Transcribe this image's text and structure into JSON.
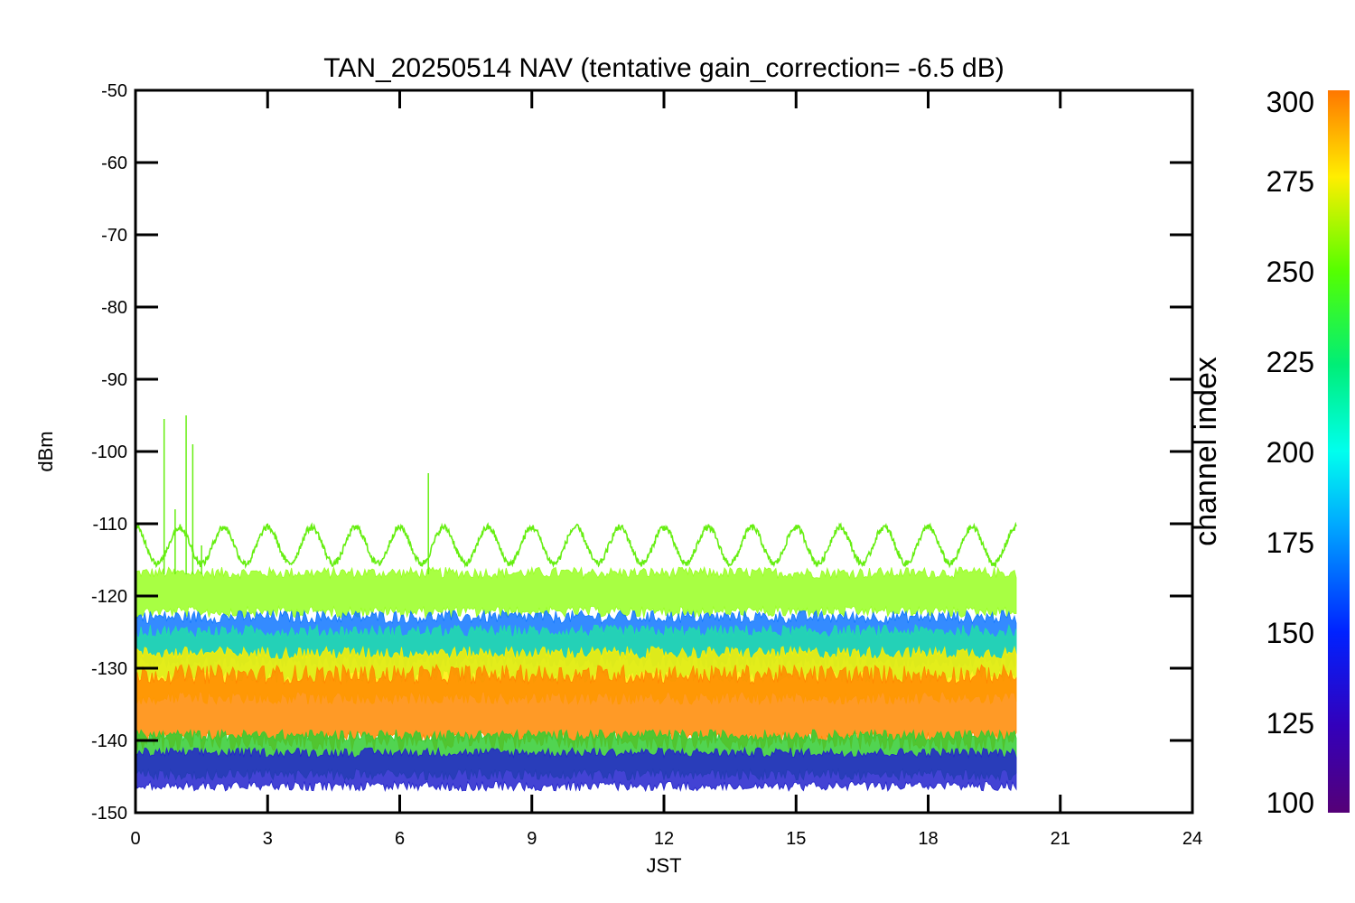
{
  "chart_data": {
    "type": "line",
    "title": "TAN_20250514 NAV (tentative gain_correction= -6.5 dB)",
    "xlabel": "JST",
    "ylabel": "dBm",
    "xlim": [
      0,
      24
    ],
    "ylim": [
      -150,
      -50
    ],
    "xticks": [
      0,
      3,
      6,
      9,
      12,
      15,
      18,
      21,
      24
    ],
    "yticks": [
      -50,
      -60,
      -70,
      -80,
      -90,
      -100,
      -110,
      -120,
      -130,
      -140,
      -150
    ],
    "colorbar": {
      "label": "channel index",
      "range": [
        100,
        300
      ],
      "ticks": [
        300,
        275,
        250,
        225,
        200,
        175,
        150,
        125,
        100
      ],
      "colormap": "rainbow"
    },
    "data_end_x": 20,
    "series": [
      {
        "channel": 240,
        "pattern": "sinusoid",
        "center": -113,
        "amplitude": 2.5,
        "cycles": 24,
        "color": "#66ee11"
      },
      {
        "channel": 255,
        "pattern": "noise_band",
        "center": -119.5,
        "spread": 3.5,
        "color": "#99ff22"
      },
      {
        "channel": 160,
        "pattern": "noise_band",
        "center": -126,
        "spread": 4,
        "color": "#1177ff"
      },
      {
        "channel": 200,
        "pattern": "noise_band",
        "center": -128,
        "spread": 4,
        "color": "#22ddaa"
      },
      {
        "channel": 265,
        "pattern": "noise_band",
        "center": -131,
        "spread": 4,
        "color": "#ffee00"
      },
      {
        "channel": 285,
        "pattern": "noise_band",
        "center": -135.5,
        "spread": 6,
        "color": "#ff8800"
      },
      {
        "channel": 220,
        "pattern": "noise_band",
        "center": -142,
        "spread": 3.5,
        "color": "#33cc33"
      },
      {
        "channel": 140,
        "pattern": "noise_band",
        "center": -144,
        "spread": 3,
        "color": "#2222cc"
      }
    ],
    "spikes": [
      {
        "x": 0.65,
        "y": -95.5
      },
      {
        "x": 0.9,
        "y": -108
      },
      {
        "x": 1.15,
        "y": -95
      },
      {
        "x": 1.3,
        "y": -99
      },
      {
        "x": 1.5,
        "y": -113
      },
      {
        "x": 6.65,
        "y": -103
      }
    ]
  }
}
